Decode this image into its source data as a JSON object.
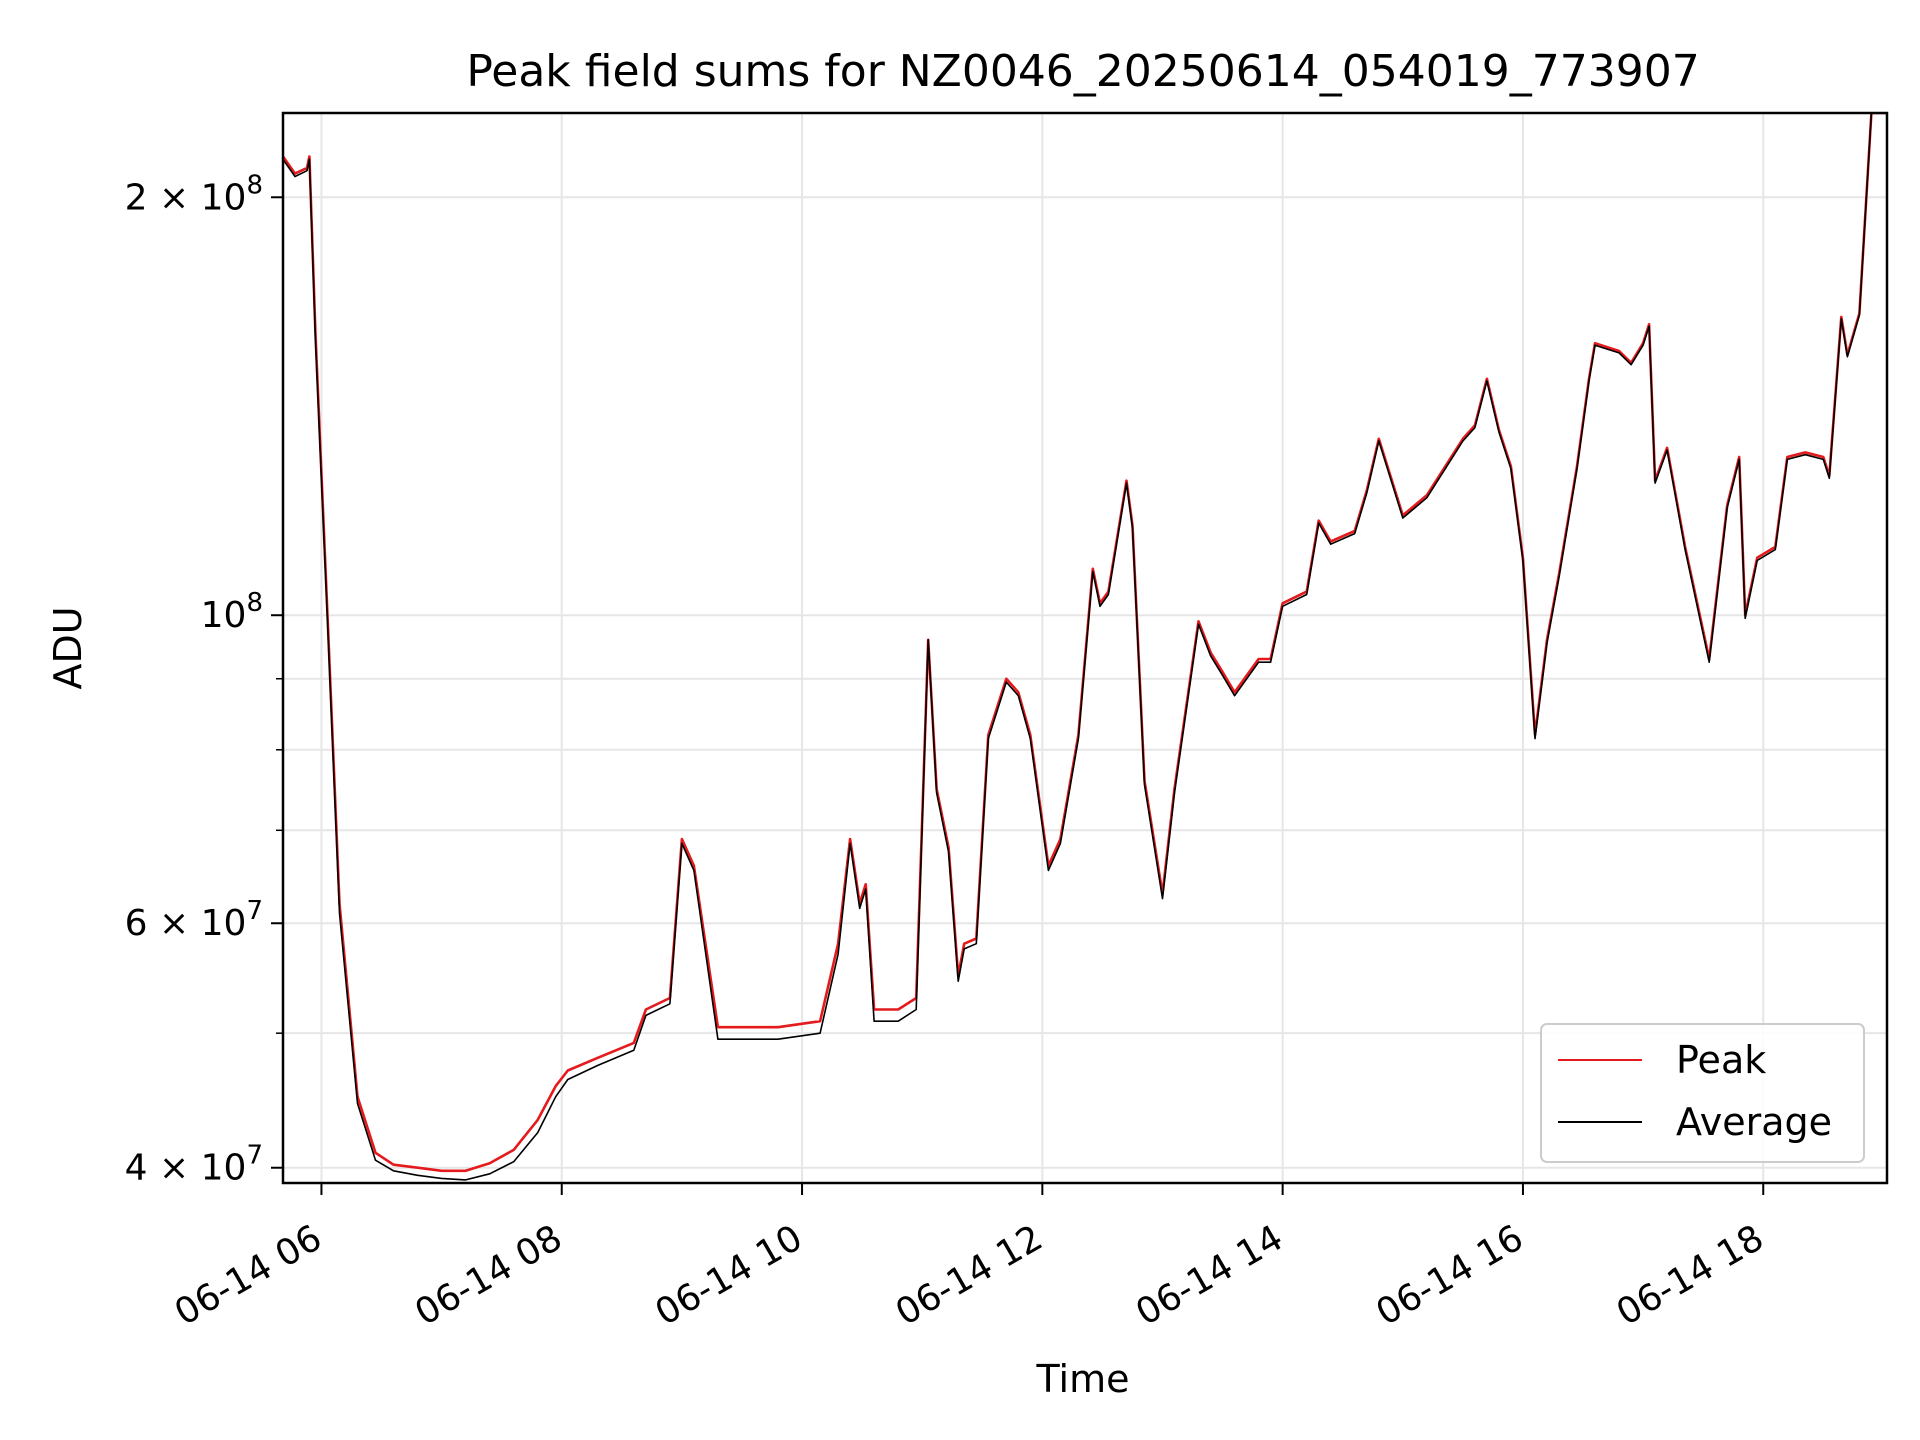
{
  "chart_data": {
    "type": "line",
    "title": "Peak field sums for NZ0046_20250614_054019_773907",
    "xlabel": "Time",
    "ylabel": "ADU",
    "x_unit": "hour of 2025-06-14",
    "xlim": [
      5.68,
      19.03
    ],
    "ylim": [
      39000000,
      230000000
    ],
    "yscale": "log",
    "grid": true,
    "legend_position": "lower-right",
    "x_ticks": [
      {
        "value": 6,
        "label": "06-14 06"
      },
      {
        "value": 8,
        "label": "06-14 08"
      },
      {
        "value": 10,
        "label": "06-14 10"
      },
      {
        "value": 12,
        "label": "06-14 12"
      },
      {
        "value": 14,
        "label": "06-14 14"
      },
      {
        "value": 16,
        "label": "06-14 16"
      },
      {
        "value": 18,
        "label": "06-14 18"
      }
    ],
    "y_ticks_major": [
      {
        "value": 40000000,
        "label_mantissa": "4",
        "label_exp": "7"
      },
      {
        "value": 60000000,
        "label_mantissa": "6",
        "label_exp": "7"
      },
      {
        "value": 100000000,
        "label_mantissa": "",
        "label_exp": "8"
      },
      {
        "value": 200000000,
        "label_mantissa": "2",
        "label_exp": "8"
      }
    ],
    "y_ticks_minor": [
      50000000,
      70000000,
      80000000,
      90000000
    ],
    "series": [
      {
        "name": "Peak",
        "color": "#e41a1c",
        "x": [
          5.68,
          5.78,
          5.88,
          5.9,
          5.95,
          6.05,
          6.15,
          6.3,
          6.45,
          6.6,
          6.8,
          7.0,
          7.2,
          7.4,
          7.6,
          7.8,
          7.95,
          8.05,
          8.3,
          8.6,
          8.7,
          8.9,
          9.0,
          9.1,
          9.3,
          9.5,
          9.8,
          10.15,
          10.3,
          10.4,
          10.48,
          10.53,
          10.6,
          10.8,
          10.95,
          11.05,
          11.12,
          11.22,
          11.3,
          11.35,
          11.45,
          11.55,
          11.7,
          11.8,
          11.9,
          12.05,
          12.15,
          12.3,
          12.42,
          12.48,
          12.55,
          12.7,
          12.75,
          12.85,
          13.0,
          13.1,
          13.3,
          13.4,
          13.5,
          13.6,
          13.8,
          13.9,
          14.0,
          14.2,
          14.3,
          14.4,
          14.6,
          14.7,
          14.8,
          15.0,
          15.2,
          15.5,
          15.6,
          15.7,
          15.8,
          15.9,
          16.0,
          16.1,
          16.2,
          16.3,
          16.45,
          16.55,
          16.6,
          16.8,
          16.9,
          17.0,
          17.05,
          17.1,
          17.2,
          17.35,
          17.55,
          17.7,
          17.8,
          17.85,
          17.95,
          18.1,
          18.2,
          18.35,
          18.5,
          18.55,
          18.65,
          18.7,
          18.8,
          18.9,
          19.03
        ],
        "y": [
          214000000,
          208000000,
          210000000,
          214000000,
          160000000,
          100000000,
          62000000,
          45000000,
          41000000,
          40200000,
          40000000,
          39800000,
          39800000,
          40300000,
          41200000,
          43300000,
          45800000,
          47000000,
          48000000,
          49200000,
          52000000,
          53000000,
          69000000,
          66000000,
          50500000,
          50500000,
          50500000,
          51000000,
          58000000,
          69000000,
          62000000,
          64000000,
          52000000,
          52000000,
          53000000,
          96000000,
          75000000,
          68000000,
          55000000,
          58000000,
          58500000,
          82000000,
          90000000,
          88000000,
          82000000,
          66000000,
          69000000,
          82000000,
          108000000,
          102000000,
          104000000,
          125000000,
          116000000,
          76000000,
          63000000,
          75000000,
          99000000,
          94000000,
          91000000,
          88000000,
          93000000,
          93000000,
          102000000,
          104000000,
          117000000,
          113000000,
          115000000,
          123000000,
          134000000,
          118000000,
          122000000,
          134000000,
          137000000,
          148000000,
          136000000,
          128000000,
          110000000,
          82000000,
          96000000,
          107000000,
          128000000,
          148000000,
          157000000,
          155000000,
          152000000,
          157000000,
          162000000,
          125000000,
          132000000,
          112000000,
          93000000,
          120000000,
          130000000,
          100000000,
          110000000,
          112000000,
          130000000,
          131000000,
          130000000,
          126000000,
          164000000,
          154000000,
          165000000,
          230000000,
          230000000
        ]
      },
      {
        "name": "Average",
        "color": "#000000",
        "x": [
          5.68,
          5.78,
          5.88,
          5.9,
          5.95,
          6.05,
          6.15,
          6.3,
          6.45,
          6.6,
          6.8,
          7.0,
          7.2,
          7.4,
          7.6,
          7.8,
          7.95,
          8.05,
          8.3,
          8.6,
          8.7,
          8.9,
          9.0,
          9.1,
          9.3,
          9.5,
          9.8,
          10.15,
          10.3,
          10.4,
          10.48,
          10.53,
          10.6,
          10.8,
          10.95,
          11.05,
          11.12,
          11.22,
          11.3,
          11.35,
          11.45,
          11.55,
          11.7,
          11.8,
          11.9,
          12.05,
          12.15,
          12.3,
          12.42,
          12.48,
          12.55,
          12.7,
          12.75,
          12.85,
          13.0,
          13.1,
          13.3,
          13.4,
          13.5,
          13.6,
          13.8,
          13.9,
          14.0,
          14.2,
          14.3,
          14.4,
          14.6,
          14.7,
          14.8,
          15.0,
          15.2,
          15.5,
          15.6,
          15.7,
          15.8,
          15.9,
          16.0,
          16.1,
          16.2,
          16.3,
          16.45,
          16.55,
          16.6,
          16.8,
          16.9,
          17.0,
          17.05,
          17.1,
          17.2,
          17.35,
          17.55,
          17.7,
          17.8,
          17.85,
          17.95,
          18.1,
          18.2,
          18.35,
          18.5,
          18.55,
          18.65,
          18.7,
          18.8,
          18.9,
          19.03
        ],
        "y": [
          213000000,
          207000000,
          209000000,
          213000000,
          158000000,
          99000000,
          61000000,
          44500000,
          40500000,
          39800000,
          39500000,
          39300000,
          39200000,
          39600000,
          40400000,
          42400000,
          45000000,
          46300000,
          47400000,
          48600000,
          51500000,
          52500000,
          68500000,
          65500000,
          49500000,
          49500000,
          49500000,
          50000000,
          57000000,
          68500000,
          61500000,
          63500000,
          51000000,
          51000000,
          52000000,
          96000000,
          74500000,
          67500000,
          54500000,
          57500000,
          58000000,
          81500000,
          89500000,
          87500000,
          81500000,
          65500000,
          68500000,
          81500000,
          107500000,
          101500000,
          103500000,
          124500000,
          115500000,
          75500000,
          62500000,
          74500000,
          98500000,
          93500000,
          90500000,
          87500000,
          92500000,
          92500000,
          101500000,
          103500000,
          116500000,
          112500000,
          114500000,
          122500000,
          133500000,
          117500000,
          121500000,
          133500000,
          136500000,
          147500000,
          135500000,
          127500000,
          109500000,
          81500000,
          95500000,
          106500000,
          127500000,
          147500000,
          156500000,
          154500000,
          151500000,
          156500000,
          161500000,
          124500000,
          131500000,
          111500000,
          92500000,
          119500000,
          129500000,
          99500000,
          109500000,
          111500000,
          129500000,
          130500000,
          129500000,
          125500000,
          163500000,
          153500000,
          164500000,
          230000000,
          230000000
        ]
      }
    ]
  }
}
